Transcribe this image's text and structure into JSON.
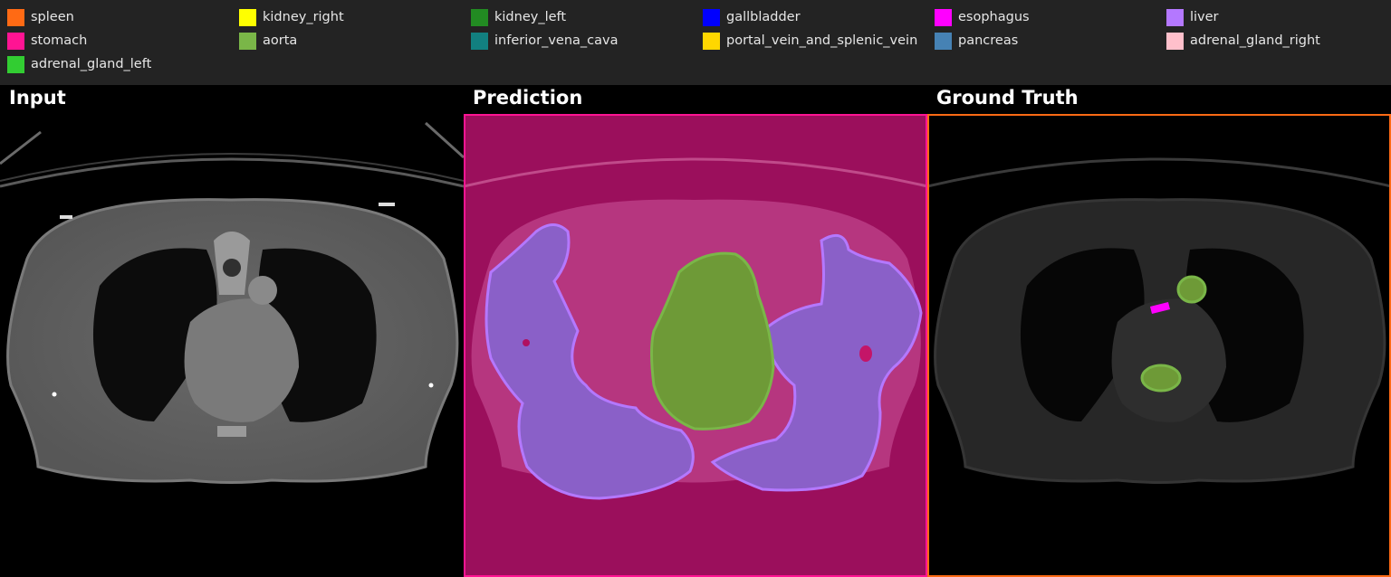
{
  "legend": {
    "items": [
      {
        "label": "spleen",
        "color": "#ff6a14"
      },
      {
        "label": "kidney_right",
        "color": "#ffff00"
      },
      {
        "label": "kidney_left",
        "color": "#228b22"
      },
      {
        "label": "gallbladder",
        "color": "#0000ff"
      },
      {
        "label": "esophagus",
        "color": "#ff00ff"
      },
      {
        "label": "liver",
        "color": "#b478ff"
      },
      {
        "label": "stomach",
        "color": "#ff1493"
      },
      {
        "label": "aorta",
        "color": "#7ab648"
      },
      {
        "label": "inferior_vena_cava",
        "color": "#128080"
      },
      {
        "label": "portal_vein_and_splenic_vein",
        "color": "#ffd700"
      },
      {
        "label": "pancreas",
        "color": "#4682b4"
      },
      {
        "label": "adrenal_gland_right",
        "color": "#ffc0cb"
      },
      {
        "label": "adrenal_gland_left",
        "color": "#32cd32"
      }
    ]
  },
  "panels": {
    "input_title": "Input",
    "prediction_title": "Prediction",
    "ground_truth_title": "Ground Truth",
    "prediction_border_color": "#ff1493",
    "ground_truth_border_color": "#ff6a14"
  }
}
